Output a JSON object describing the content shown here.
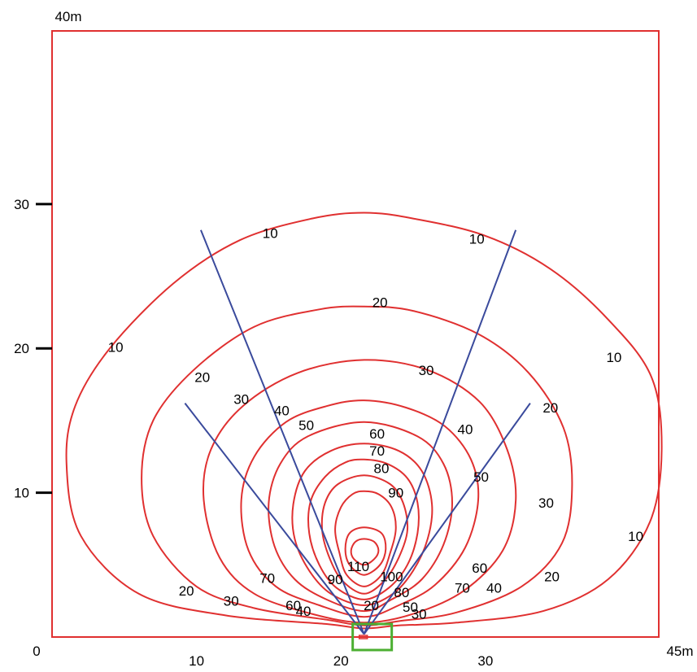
{
  "chart_data": {
    "type": "contour",
    "x_range": [
      0,
      42
    ],
    "y_range": [
      0,
      42
    ],
    "x_corner_label": "45m",
    "y_corner_label": "40m",
    "origin_label": "0",
    "x_ticks": [
      {
        "value": 10,
        "label": "10"
      },
      {
        "value": 20,
        "label": "20"
      },
      {
        "value": 30,
        "label": "30"
      }
    ],
    "y_ticks": [
      {
        "value": 10,
        "label": "10"
      },
      {
        "value": 20,
        "label": "20"
      },
      {
        "value": 30,
        "label": "30"
      }
    ],
    "beam_origin": [
      21.6,
      0.2
    ],
    "beam_lines": [
      {
        "end": [
          10.3,
          28.2
        ]
      },
      {
        "end": [
          9.2,
          16.2
        ]
      },
      {
        "end": [
          33.1,
          16.2
        ]
      },
      {
        "end": [
          32.1,
          28.2
        ]
      }
    ],
    "contours": [
      {
        "level": 10,
        "pts": [
          [
            21.6,
            0.6
          ],
          [
            19,
            0.9
          ],
          [
            12,
            1.5
          ],
          [
            6,
            3
          ],
          [
            2,
            7
          ],
          [
            1,
            12
          ],
          [
            1.6,
            16
          ],
          [
            4,
            20
          ],
          [
            8.4,
            24.5
          ],
          [
            13,
            27.5
          ],
          [
            18,
            29
          ],
          [
            21.6,
            29.4
          ],
          [
            25,
            29
          ],
          [
            30,
            27.8
          ],
          [
            34.5,
            25.5
          ],
          [
            38.5,
            22
          ],
          [
            41.5,
            18
          ],
          [
            42.2,
            13
          ],
          [
            41.4,
            8
          ],
          [
            38.5,
            4
          ],
          [
            34,
            1.8
          ],
          [
            28,
            1
          ],
          [
            24,
            0.8
          ],
          [
            21.6,
            0.6
          ]
        ]
      },
      {
        "level": 20,
        "pts": [
          [
            21.6,
            0.8
          ],
          [
            19,
            1.2
          ],
          [
            14,
            2
          ],
          [
            10,
            3.5
          ],
          [
            7,
            7
          ],
          [
            6.2,
            11
          ],
          [
            7,
            15
          ],
          [
            9.8,
            18.5
          ],
          [
            14,
            21.5
          ],
          [
            18.5,
            22.7
          ],
          [
            21.6,
            22.9
          ],
          [
            25,
            22.6
          ],
          [
            29.5,
            21
          ],
          [
            33,
            18.3
          ],
          [
            35.4,
            14.5
          ],
          [
            36,
            10.5
          ],
          [
            35.3,
            6.5
          ],
          [
            32.5,
            3.5
          ],
          [
            28,
            1.7
          ],
          [
            24,
            1.1
          ],
          [
            21.6,
            0.8
          ]
        ]
      },
      {
        "level": 30,
        "pts": [
          [
            21.6,
            1
          ],
          [
            18,
            1.6
          ],
          [
            14,
            3
          ],
          [
            11.6,
            5.5
          ],
          [
            10.5,
            9.5
          ],
          [
            11,
            13
          ],
          [
            13.2,
            16
          ],
          [
            17,
            18.3
          ],
          [
            21.6,
            19.2
          ],
          [
            26,
            18.5
          ],
          [
            29.6,
            16.3
          ],
          [
            31.5,
            13
          ],
          [
            32.1,
            9.5
          ],
          [
            31.2,
            6
          ],
          [
            28.5,
            3.2
          ],
          [
            25,
            1.6
          ],
          [
            21.6,
            1
          ]
        ]
      },
      {
        "level": 40,
        "pts": [
          [
            21.6,
            1.4
          ],
          [
            18.5,
            2.2
          ],
          [
            15.5,
            3.5
          ],
          [
            13.6,
            6
          ],
          [
            13.1,
            9.5
          ],
          [
            14,
            12.5
          ],
          [
            16.2,
            14.9
          ],
          [
            19,
            16
          ],
          [
            21.6,
            16.4
          ],
          [
            24.5,
            15.9
          ],
          [
            27.2,
            14.6
          ],
          [
            29,
            12.3
          ],
          [
            29.5,
            9.5
          ],
          [
            28.6,
            6.2
          ],
          [
            26.5,
            3.6
          ],
          [
            24,
            2.2
          ],
          [
            21.6,
            1.4
          ]
        ]
      },
      {
        "level": 50,
        "pts": [
          [
            21.6,
            1.8
          ],
          [
            19,
            2.6
          ],
          [
            16.8,
            4
          ],
          [
            15.4,
            6.3
          ],
          [
            15,
            9.3
          ],
          [
            15.8,
            12
          ],
          [
            17.7,
            13.9
          ],
          [
            21.6,
            14.9
          ],
          [
            25.3,
            13.9
          ],
          [
            27.1,
            12
          ],
          [
            27.7,
            9.3
          ],
          [
            27.1,
            6.4
          ],
          [
            25.6,
            4
          ],
          [
            23.5,
            2.6
          ],
          [
            21.6,
            1.8
          ]
        ]
      },
      {
        "level": 60,
        "pts": [
          [
            21.6,
            2.2
          ],
          [
            19.3,
            3
          ],
          [
            17.8,
            4.6
          ],
          [
            16.8,
            6.8
          ],
          [
            16.7,
            9.2
          ],
          [
            17.5,
            11.5
          ],
          [
            19.3,
            12.9
          ],
          [
            21.6,
            13.4
          ],
          [
            24,
            12.9
          ],
          [
            25.6,
            11.5
          ],
          [
            26.3,
            9.2
          ],
          [
            26,
            6.8
          ],
          [
            25,
            4.6
          ],
          [
            23.6,
            3
          ],
          [
            21.6,
            2.2
          ]
        ]
      },
      {
        "level": 70,
        "pts": [
          [
            21.6,
            2.6
          ],
          [
            19.7,
            3.4
          ],
          [
            18.5,
            5
          ],
          [
            17.8,
            7.2
          ],
          [
            17.9,
            9.4
          ],
          [
            18.9,
            11.1
          ],
          [
            20.3,
            12.1
          ],
          [
            21.6,
            12.3
          ],
          [
            23.2,
            12
          ],
          [
            24.6,
            11
          ],
          [
            25.3,
            9.3
          ],
          [
            25.3,
            7.2
          ],
          [
            24.6,
            5
          ],
          [
            23.3,
            3.4
          ],
          [
            21.6,
            2.6
          ]
        ]
      },
      {
        "level": 80,
        "pts": [
          [
            21.6,
            3
          ],
          [
            20.1,
            3.9
          ],
          [
            19.2,
            5.5
          ],
          [
            18.7,
            7.4
          ],
          [
            18.9,
            9.3
          ],
          [
            19.8,
            10.6
          ],
          [
            21.6,
            11.2
          ],
          [
            23.4,
            10.6
          ],
          [
            24.3,
            9.3
          ],
          [
            24.6,
            7.4
          ],
          [
            24,
            5.5
          ],
          [
            23,
            3.9
          ],
          [
            21.6,
            3
          ]
        ]
      },
      {
        "level": 90,
        "pts": [
          [
            21.6,
            3.5
          ],
          [
            20.4,
            4.3
          ],
          [
            19.9,
            5.8
          ],
          [
            19.6,
            7.5
          ],
          [
            20,
            9
          ],
          [
            20.8,
            9.9
          ],
          [
            21.6,
            10.1
          ],
          [
            22.6,
            9.9
          ],
          [
            23.5,
            9
          ],
          [
            23.8,
            7.5
          ],
          [
            23.4,
            5.8
          ],
          [
            22.8,
            4.3
          ],
          [
            21.6,
            3.5
          ]
        ]
      },
      {
        "level": 100,
        "pts": [
          [
            21.6,
            4.3
          ],
          [
            20.6,
            5
          ],
          [
            20.3,
            6.1
          ],
          [
            20.6,
            7.2
          ],
          [
            21.6,
            7.6
          ],
          [
            22.8,
            7.2
          ],
          [
            23.1,
            6.1
          ],
          [
            22.7,
            5
          ],
          [
            21.6,
            4.3
          ]
        ]
      },
      {
        "level": 110,
        "pts": [
          [
            21.6,
            5
          ],
          [
            20.9,
            5.4
          ],
          [
            20.7,
            6
          ],
          [
            21,
            6.6
          ],
          [
            21.6,
            6.8
          ],
          [
            22.3,
            6.6
          ],
          [
            22.6,
            6
          ],
          [
            22.3,
            5.4
          ],
          [
            21.6,
            5
          ]
        ]
      }
    ],
    "labels": [
      {
        "text": "10",
        "x": 15.1,
        "y": 28.0
      },
      {
        "text": "10",
        "x": 29.4,
        "y": 27.6
      },
      {
        "text": "10",
        "x": 4.4,
        "y": 20.1
      },
      {
        "text": "10",
        "x": 38.9,
        "y": 19.4
      },
      {
        "text": "10",
        "x": 40.4,
        "y": 7.0
      },
      {
        "text": "20",
        "x": 22.7,
        "y": 23.2
      },
      {
        "text": "20",
        "x": 10.4,
        "y": 18.0
      },
      {
        "text": "20",
        "x": 34.5,
        "y": 15.9
      },
      {
        "text": "20",
        "x": 9.3,
        "y": 3.2
      },
      {
        "text": "20",
        "x": 34.6,
        "y": 4.2
      },
      {
        "text": "30",
        "x": 25.9,
        "y": 18.5
      },
      {
        "text": "30",
        "x": 13.1,
        "y": 16.5
      },
      {
        "text": "30",
        "x": 34.2,
        "y": 9.3
      },
      {
        "text": "30",
        "x": 12.4,
        "y": 2.5
      },
      {
        "text": "40",
        "x": 15.9,
        "y": 15.7
      },
      {
        "text": "40",
        "x": 28.6,
        "y": 14.4
      },
      {
        "text": "40",
        "x": 30.6,
        "y": 3.4
      },
      {
        "text": "50",
        "x": 17.6,
        "y": 14.7
      },
      {
        "text": "50",
        "x": 29.7,
        "y": 11.1
      },
      {
        "text": "60",
        "x": 22.5,
        "y": 14.1
      },
      {
        "text": "60",
        "x": 29.6,
        "y": 4.8
      },
      {
        "text": "70",
        "x": 22.5,
        "y": 12.9
      },
      {
        "text": "70",
        "x": 14.9,
        "y": 4.1
      },
      {
        "text": "70",
        "x": 28.4,
        "y": 3.4
      },
      {
        "text": "80",
        "x": 22.8,
        "y": 11.7
      },
      {
        "text": "90",
        "x": 23.8,
        "y": 10.0
      },
      {
        "text": "110",
        "x": 21.2,
        "y": 4.9
      },
      {
        "text": "100",
        "x": 23.5,
        "y": 4.2
      },
      {
        "text": "90",
        "x": 19.6,
        "y": 4.0
      },
      {
        "text": "80",
        "x": 24.2,
        "y": 3.1
      },
      {
        "text": "20",
        "x": 22.1,
        "y": 2.2
      },
      {
        "text": "60",
        "x": 16.7,
        "y": 2.2
      },
      {
        "text": "50",
        "x": 24.8,
        "y": 2.1
      },
      {
        "text": "40",
        "x": 17.4,
        "y": 1.8
      },
      {
        "text": "30",
        "x": 25.4,
        "y": 1.6
      }
    ]
  },
  "colors": {
    "frame": "#e03030",
    "contour": "#e03030",
    "beam": "#3a4a9c",
    "vehicle": "#4caf32",
    "text": "#000000"
  }
}
